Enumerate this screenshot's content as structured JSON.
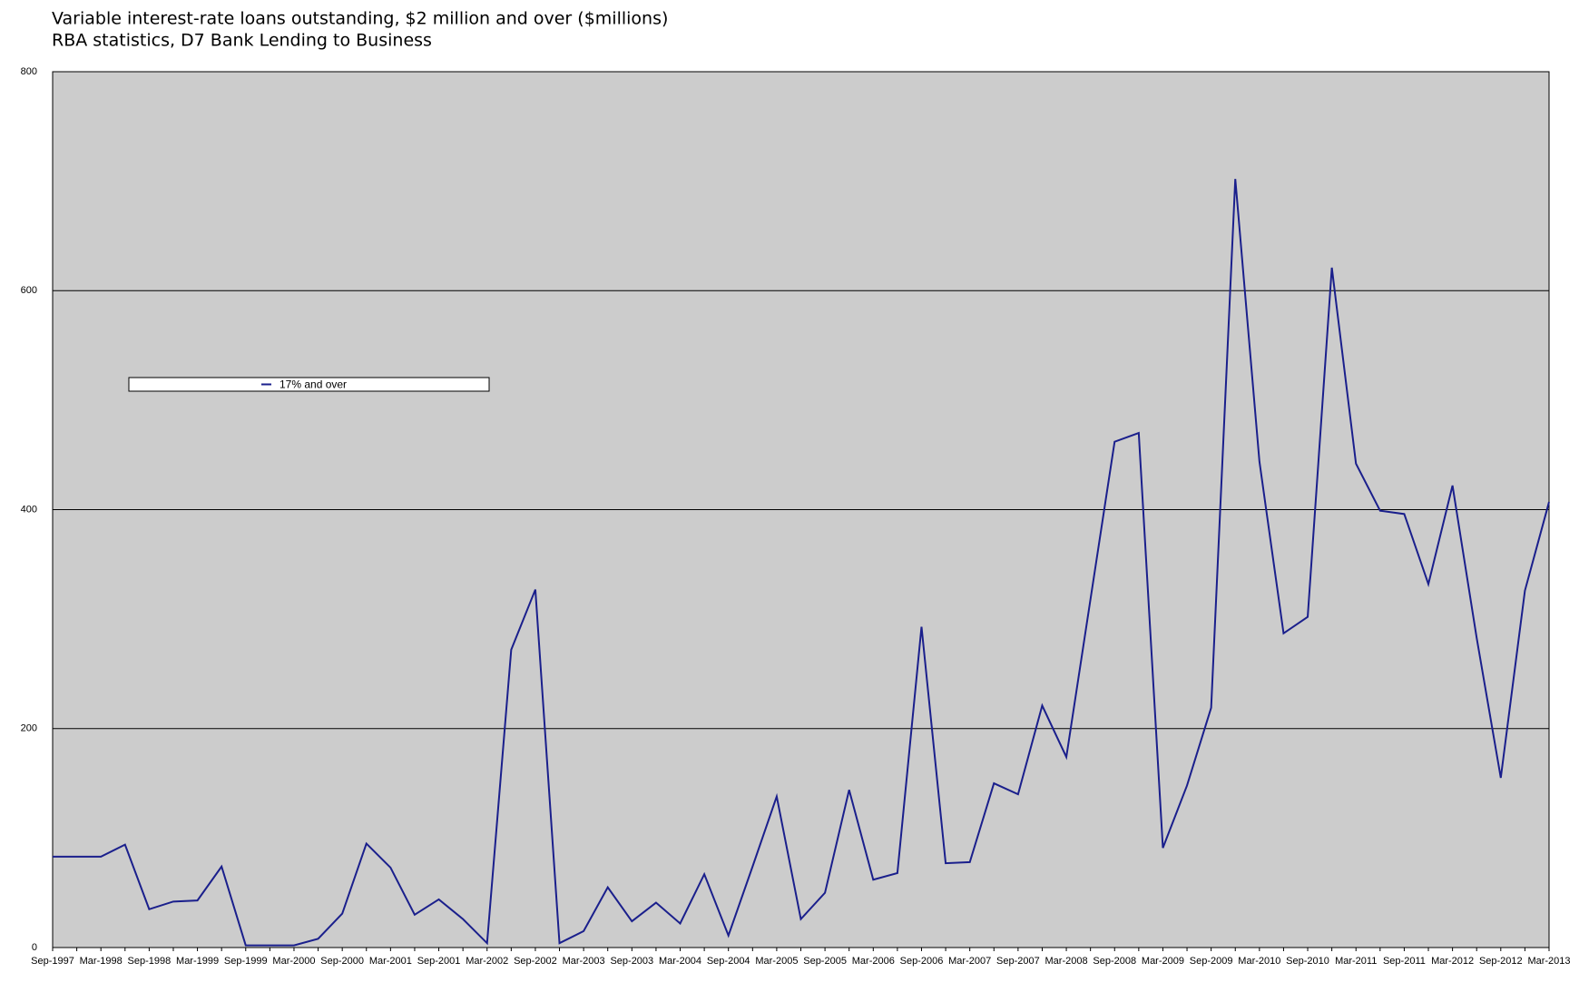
{
  "chart_data": {
    "type": "line",
    "title": "Variable interest-rate loans outstanding, $2 million and over ($millions)",
    "subtitle": "RBA statistics, D7 Bank Lending to Business",
    "categories": [
      "Sep-1997",
      null,
      "Mar-1998",
      null,
      "Sep-1998",
      null,
      "Mar-1999",
      null,
      "Sep-1999",
      null,
      "Mar-2000",
      null,
      "Sep-2000",
      null,
      "Mar-2001",
      null,
      "Sep-2001",
      null,
      "Mar-2002",
      null,
      "Sep-2002",
      null,
      "Mar-2003",
      null,
      "Sep-2003",
      null,
      "Mar-2004",
      null,
      "Sep-2004",
      null,
      "Mar-2005",
      null,
      "Sep-2005",
      null,
      "Mar-2006",
      null,
      "Sep-2006",
      null,
      "Mar-2007",
      null,
      "Sep-2007",
      null,
      "Mar-2008",
      null,
      "Sep-2008",
      null,
      "Mar-2009",
      null,
      "Sep-2009",
      null,
      "Mar-2010",
      null,
      "Sep-2010",
      null,
      "Mar-2011",
      null,
      "Sep-2011",
      null,
      "Mar-2012",
      null,
      "Sep-2012",
      null,
      "Mar-2013"
    ],
    "series": [
      {
        "name": "17% and over",
        "color": "#1a1f8c",
        "values": [
          83,
          83,
          83,
          94,
          35,
          42,
          43,
          74,
          2,
          2,
          2,
          8,
          31,
          95,
          73,
          30,
          44,
          26,
          4,
          272,
          327,
          4,
          15,
          55,
          24,
          41,
          22,
          67,
          11,
          74,
          138,
          26,
          50,
          144,
          62,
          68,
          293,
          77,
          78,
          150,
          140,
          221,
          174,
          318,
          462,
          470,
          91,
          148,
          219,
          702,
          444,
          287,
          302,
          621,
          442,
          399,
          396,
          332,
          422,
          283,
          155,
          326,
          407
        ]
      }
    ],
    "ylim": [
      0,
      800
    ],
    "yticks": [
      0,
      200,
      400,
      600,
      800
    ],
    "grid": true,
    "plot_background": "#cccccc"
  }
}
